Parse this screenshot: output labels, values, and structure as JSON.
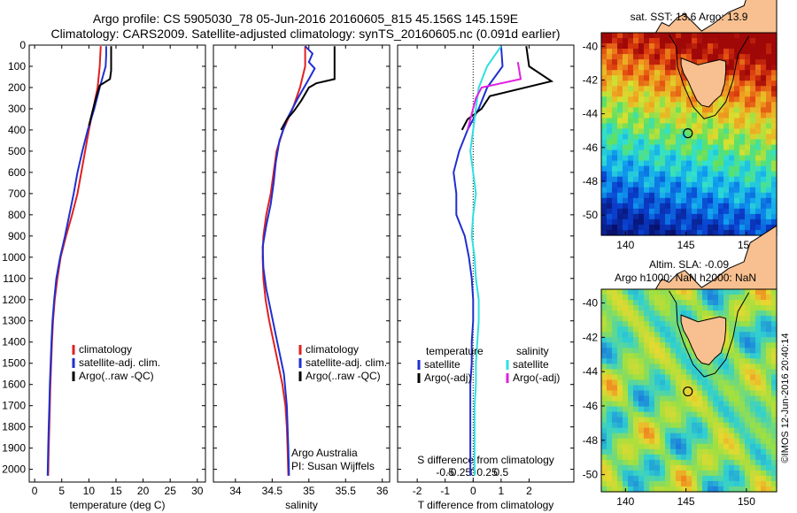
{
  "header": {
    "line1": "Argo profile: CS 5905030_78 05-Jun-2016 20160605_815 45.156S 145.159E",
    "line2": "Climatology: CARS2009. Satellite-adjusted climatology: synTS_20160605.nc (0.091d earlier)"
  },
  "colors": {
    "climatology": "#e02020",
    "satellite": "#1f2fd0",
    "argo": "#000000",
    "satellite_salinity": "#30e0e0",
    "argo_adj_salinity": "#e020e0"
  },
  "chart_data": [
    {
      "type": "line",
      "name": "temperature",
      "xlabel": "temperature (deg C)",
      "ylabel": "",
      "xlim": [
        -1,
        31.5
      ],
      "ylim": [
        2060,
        0
      ],
      "xticks": [
        0,
        5,
        10,
        15,
        20,
        25,
        30
      ],
      "yticks": [
        0,
        100,
        200,
        300,
        400,
        500,
        600,
        700,
        800,
        900,
        1000,
        1100,
        1200,
        1300,
        1400,
        1500,
        1600,
        1700,
        1800,
        1900,
        2000
      ],
      "legend": [
        "climatology",
        "satellite-adj. clim.",
        "Argo(..raw -QC)"
      ],
      "series": [
        {
          "name": "climatology",
          "color": "#e02020",
          "points": [
            [
              12.2,
              5
            ],
            [
              12.1,
              50
            ],
            [
              12.0,
              100
            ],
            [
              11.6,
              200
            ],
            [
              10.8,
              300
            ],
            [
              10.0,
              400
            ],
            [
              9.3,
              500
            ],
            [
              8.6,
              600
            ],
            [
              7.9,
              700
            ],
            [
              6.9,
              800
            ],
            [
              5.8,
              900
            ],
            [
              4.8,
              1000
            ],
            [
              4.2,
              1100
            ],
            [
              3.7,
              1200
            ],
            [
              3.4,
              1300
            ],
            [
              3.2,
              1400
            ],
            [
              3.05,
              1500
            ],
            [
              2.9,
              1600
            ],
            [
              2.8,
              1700
            ],
            [
              2.7,
              1800
            ],
            [
              2.6,
              1900
            ],
            [
              2.5,
              2030
            ]
          ]
        },
        {
          "name": "satellite-adj. clim.",
          "color": "#1f2fd0",
          "points": [
            [
              13.2,
              5
            ],
            [
              13.2,
              50
            ],
            [
              13.1,
              100
            ],
            [
              12.0,
              200
            ],
            [
              11.0,
              300
            ],
            [
              9.8,
              400
            ],
            [
              8.8,
              500
            ],
            [
              7.9,
              600
            ],
            [
              7.2,
              700
            ],
            [
              6.4,
              800
            ],
            [
              5.6,
              900
            ],
            [
              4.7,
              1000
            ],
            [
              4.0,
              1100
            ],
            [
              3.6,
              1200
            ],
            [
              3.3,
              1300
            ],
            [
              3.1,
              1400
            ],
            [
              2.95,
              1500
            ],
            [
              2.8,
              1600
            ],
            [
              2.7,
              1700
            ],
            [
              2.6,
              1800
            ],
            [
              2.5,
              1900
            ],
            [
              2.4,
              2030
            ]
          ]
        },
        {
          "name": "Argo(..raw -QC)",
          "color": "#000000",
          "points": [
            [
              14.1,
              5
            ],
            [
              14.1,
              120
            ],
            [
              13.9,
              160
            ],
            [
              12.0,
              190
            ],
            [
              11.2,
              260
            ],
            [
              10.6,
              320
            ],
            [
              10.0,
              380
            ]
          ]
        }
      ]
    },
    {
      "type": "line",
      "name": "salinity",
      "xlabel": "salinity",
      "ylabel": "",
      "xlim": [
        33.7,
        36.1
      ],
      "ylim": [
        2060,
        0
      ],
      "xticks": [
        34,
        34.5,
        35,
        35.5,
        36
      ],
      "legend": [
        "climatology",
        "satellite-adj. clim.",
        "Argo(..raw -QC)"
      ],
      "annotations": [
        "Argo Australia",
        "PI: Susan Wijffels"
      ],
      "series": [
        {
          "name": "climatology",
          "color": "#e02020",
          "points": [
            [
              34.95,
              5
            ],
            [
              34.95,
              100
            ],
            [
              34.88,
              200
            ],
            [
              34.78,
              300
            ],
            [
              34.65,
              400
            ],
            [
              34.56,
              500
            ],
            [
              34.52,
              600
            ],
            [
              34.48,
              700
            ],
            [
              34.42,
              800
            ],
            [
              34.38,
              900
            ],
            [
              34.37,
              1000
            ],
            [
              34.38,
              1100
            ],
            [
              34.41,
              1200
            ],
            [
              34.46,
              1300
            ],
            [
              34.52,
              1400
            ],
            [
              34.58,
              1500
            ],
            [
              34.64,
              1600
            ],
            [
              34.68,
              1700
            ],
            [
              34.7,
              1800
            ],
            [
              34.71,
              1900
            ],
            [
              34.72,
              2030
            ]
          ]
        },
        {
          "name": "satellite-adj. clim.",
          "color": "#1f2fd0",
          "points": [
            [
              34.95,
              5
            ],
            [
              35.05,
              40
            ],
            [
              35.0,
              80
            ],
            [
              35.08,
              110
            ],
            [
              35.0,
              160
            ],
            [
              34.85,
              250
            ],
            [
              34.7,
              350
            ],
            [
              34.6,
              450
            ],
            [
              34.55,
              550
            ],
            [
              34.52,
              650
            ],
            [
              34.48,
              750
            ],
            [
              34.42,
              850
            ],
            [
              34.37,
              950
            ],
            [
              34.38,
              1050
            ],
            [
              34.42,
              1150
            ],
            [
              34.48,
              1250
            ],
            [
              34.54,
              1350
            ],
            [
              34.6,
              1450
            ],
            [
              34.66,
              1550
            ],
            [
              34.7,
              1700
            ],
            [
              34.72,
              1900
            ],
            [
              34.73,
              2030
            ]
          ]
        },
        {
          "name": "Argo(..raw -QC)",
          "color": "#000000",
          "points": [
            [
              35.35,
              5
            ],
            [
              35.35,
              160
            ],
            [
              35.1,
              180
            ],
            [
              35.0,
              200
            ],
            [
              34.9,
              260
            ],
            [
              34.8,
              310
            ],
            [
              34.7,
              350
            ],
            [
              34.62,
              400
            ]
          ]
        }
      ]
    },
    {
      "type": "line",
      "name": "difference from climatology",
      "xlabel": "T difference from climatology",
      "xlabel_top": "S difference from climatology",
      "ylabel": "",
      "xlim": [
        -2.7,
        3.6
      ],
      "ylim": [
        2060,
        0
      ],
      "xticks": [
        -2,
        -1,
        0,
        1,
        2
      ],
      "xticks_top": [
        "-0.5",
        "-0.25",
        "0",
        "0.25",
        "0.5"
      ],
      "legend_titles": [
        "temperature",
        "salinity"
      ],
      "legend": [
        "satellite",
        "Argo(-adj)",
        "satellite",
        "Argo(-adj)"
      ],
      "series": [
        {
          "name": "temperature satellite",
          "color": "#1f2fd0",
          "points": [
            [
              1.0,
              5
            ],
            [
              1.05,
              100
            ],
            [
              0.5,
              200
            ],
            [
              0.2,
              300
            ],
            [
              -0.2,
              400
            ],
            [
              -0.5,
              500
            ],
            [
              -0.7,
              600
            ],
            [
              -0.6,
              700
            ],
            [
              -0.6,
              800
            ],
            [
              -0.3,
              900
            ],
            [
              -0.15,
              1000
            ],
            [
              -0.05,
              1100
            ],
            [
              0.0,
              1200
            ],
            [
              0.0,
              1300
            ],
            [
              -0.05,
              1400
            ],
            [
              -0.05,
              1500
            ],
            [
              -0.1,
              1600
            ],
            [
              -0.1,
              1700
            ],
            [
              -0.1,
              1800
            ],
            [
              -0.1,
              1900
            ],
            [
              -0.1,
              2030
            ]
          ]
        },
        {
          "name": "temperature Argo(-adj)",
          "color": "#000000",
          "points": [
            [
              1.9,
              5
            ],
            [
              2.0,
              100
            ],
            [
              2.8,
              170
            ],
            [
              0.6,
              240
            ],
            [
              0.3,
              300
            ],
            [
              -0.2,
              350
            ],
            [
              -0.4,
              400
            ]
          ]
        },
        {
          "name": "salinity satellite",
          "color": "#30e0e0",
          "points": [
            [
              1.0,
              5
            ],
            [
              0.5,
              100
            ],
            [
              0.2,
              200
            ],
            [
              0.1,
              300
            ],
            [
              0.0,
              400
            ],
            [
              -0.1,
              500
            ],
            [
              0.0,
              600
            ],
            [
              0.1,
              700
            ],
            [
              0.0,
              800
            ],
            [
              -0.05,
              900
            ],
            [
              0.05,
              1000
            ],
            [
              0.1,
              1100
            ],
            [
              0.2,
              1200
            ],
            [
              0.2,
              1300
            ],
            [
              0.15,
              1400
            ],
            [
              0.1,
              1500
            ],
            [
              0.1,
              1600
            ],
            [
              0.05,
              1700
            ],
            [
              0.05,
              1800
            ],
            [
              0.05,
              1900
            ],
            [
              0.05,
              2030
            ]
          ]
        },
        {
          "name": "salinity Argo(-adj)",
          "color": "#e020e0",
          "points": [
            [
              1.6,
              80
            ],
            [
              1.7,
              160
            ],
            [
              0.3,
              200
            ],
            [
              0.1,
              250
            ],
            [
              -0.1,
              350
            ],
            [
              -0.2,
              400
            ]
          ]
        }
      ]
    },
    {
      "type": "heatmap",
      "name": "sat. SST",
      "title": "sat. SST: 13.6 Argo: 13.9",
      "xticks": [
        140,
        145,
        150
      ],
      "yticks": [
        -40,
        -42,
        -44,
        -46,
        -48,
        -50
      ],
      "xlim": [
        138,
        152.5
      ],
      "ylim": [
        -51.2,
        -39.2
      ],
      "profile_location": [
        145.159,
        -45.156
      ]
    },
    {
      "type": "heatmap",
      "name": "Altim. SLA",
      "title": "Altim. SLA: -0.09",
      "subtitle": "Argo h1000: NaN h2000: NaN",
      "xticks": [
        140,
        145,
        150
      ],
      "yticks": [
        -40,
        -42,
        -44,
        -46,
        -48,
        -50
      ],
      "xlim": [
        138,
        152.5
      ],
      "ylim": [
        -51,
        -39.2
      ],
      "profile_location": [
        145.159,
        -45.156
      ]
    }
  ],
  "side_label": "©IMOS 12-Jun-2016 20:40:14"
}
